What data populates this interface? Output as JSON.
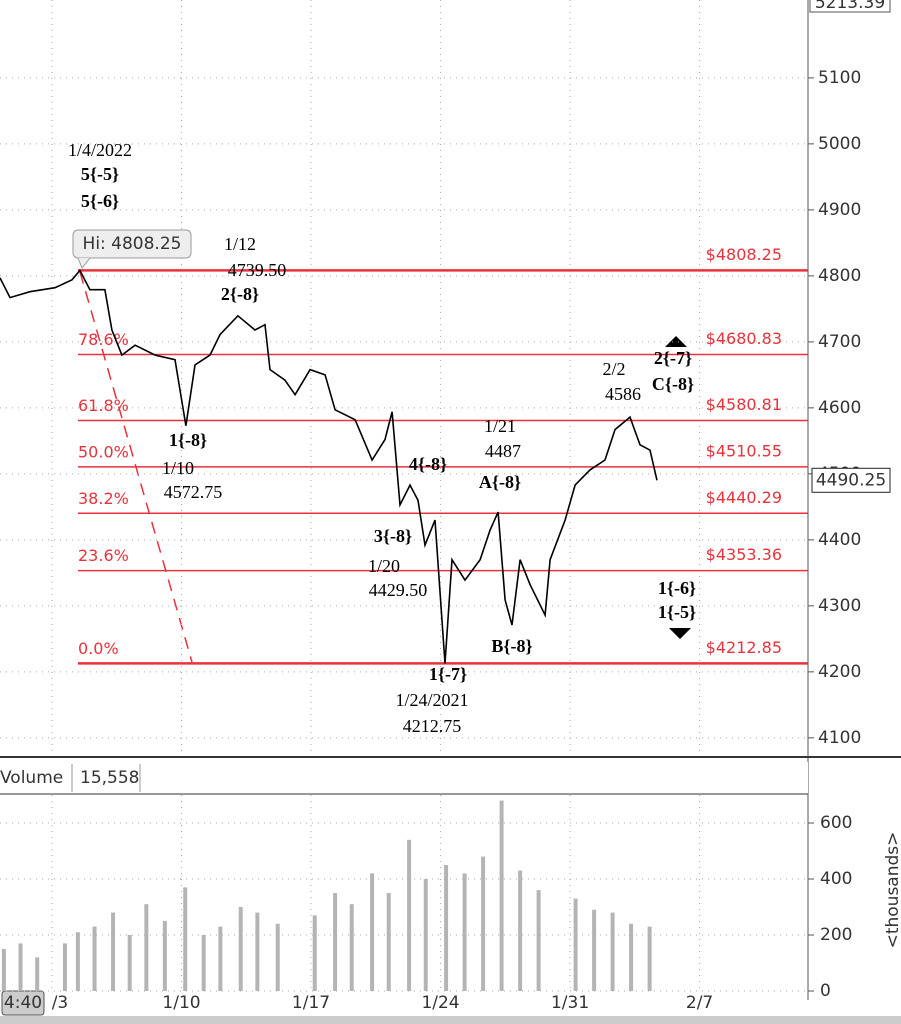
{
  "chart_data": [
    {
      "type": "line",
      "color": "#000000",
      "x": [
        -2.81,
        -2.27,
        -1.19,
        0.16,
        1.08,
        1.51,
        2.05,
        2.86,
        3.24,
        3.78,
        4.49,
        5.57,
        6.65,
        7.24,
        7.73,
        8.54,
        9.08,
        10.05,
        10.97,
        11.51,
        11.78,
        12.59,
        13.14,
        13.95,
        14.76,
        15.3,
        16.38,
        17.3,
        18,
        18.38,
        18.81,
        19.35,
        19.78,
        20.16,
        20.7,
        21.24,
        21.62,
        22.32,
        23.14,
        23.68,
        24.11,
        24.49,
        24.86,
        25.3,
        25.84,
        26.65,
        26.92,
        27.73,
        28.27,
        29.08,
        29.89,
        30.43,
        31.24,
        31.78,
        32.32,
        32.7
      ],
      "values": [
        4797,
        4767,
        4776,
        4782,
        4794,
        4808.25,
        4779,
        4779,
        4718,
        4680,
        4695,
        4680,
        4673,
        4572.75,
        4665,
        4680,
        4711,
        4739.5,
        4718,
        4726,
        4658,
        4642,
        4620,
        4658,
        4650,
        4597,
        4582,
        4521,
        4552,
        4594,
        4453,
        4483,
        4460,
        4392,
        4430,
        4212.75,
        4370,
        4339,
        4370,
        4415,
        4442,
        4309,
        4271,
        4370,
        4332,
        4286,
        4370,
        4430,
        4483,
        4506,
        4521,
        4567,
        4586,
        4544,
        4536,
        4490.25
      ],
      "xlim": [
        -2.81,
        40.86
      ],
      "xticks": [
        {
          "value": 0,
          "label": "/3"
        },
        {
          "value": 7,
          "label": "1/10"
        },
        {
          "value": 14,
          "label": "1/17"
        },
        {
          "value": 21,
          "label": "1/24"
        },
        {
          "value": 28,
          "label": "1/31"
        },
        {
          "value": 35,
          "label": "2/7"
        }
      ],
      "time_label": "4:40",
      "ylim": [
        4074,
        5218
      ],
      "yticks": [
        4100,
        4200,
        4300,
        4400,
        4500,
        4600,
        4700,
        4800,
        4900,
        5000,
        5100
      ],
      "top_price": "5213.39",
      "last_price": {
        "value": 4490.25,
        "label": "4490.25"
      },
      "level_color": "#e8323c",
      "levels": [
        {
          "value": 4808.25,
          "label": "$4808.25"
        },
        {
          "value": 4680.83,
          "label": "$4680.83",
          "pct": "78.6%"
        },
        {
          "value": 4580.81,
          "label": "$4580.81",
          "pct": "61.8%"
        },
        {
          "value": 4510.55,
          "label": "$4510.55",
          "pct": "50.0%"
        },
        {
          "value": 4440.29,
          "label": "$4440.29",
          "pct": "38.2%"
        },
        {
          "value": 4353.36,
          "label": "$4353.36",
          "pct": "23.6%"
        },
        {
          "value": 4212.85,
          "label": "$4212.85",
          "pct": "0.0%"
        }
      ],
      "annotations": [
        "1/4/2022",
        "5{-5}",
        "5{-6}",
        "Hi: 4808.25",
        "1/12",
        "4739.50",
        "2{-8}",
        "1{-8}",
        "1/10",
        "4572.75",
        "4{-8}",
        "1/21",
        "4487",
        "A{-8}",
        "3{-8}",
        "1/20",
        "4429.50",
        "B{-8}",
        "1{-7}",
        "1/24/2021",
        "4212.75",
        "2/2",
        "4586",
        "2{-7}",
        "C{-8}",
        "1{-6}",
        "1{-5}"
      ],
      "grid": true
    },
    {
      "type": "bar",
      "title": "Volume",
      "last_value": "15,558",
      "color": "#b4b4b4",
      "x": [
        -2.6,
        -1.7,
        -0.8,
        0.7,
        1.4,
        2.3,
        3.3,
        4.2,
        5.1,
        6.1,
        7.2,
        8.2,
        9.1,
        10.2,
        11.1,
        12.2,
        14.2,
        15.3,
        16.2,
        17.3,
        18.2,
        19.3,
        20.2,
        21.3,
        22.3,
        23.3,
        24.3,
        25.3,
        26.3,
        28.3,
        29.3,
        30.3,
        31.3,
        32.3
      ],
      "values": [
        150,
        170,
        120,
        170,
        210,
        230,
        280,
        200,
        310,
        250,
        370,
        200,
        230,
        300,
        280,
        240,
        270,
        350,
        310,
        420,
        350,
        540,
        400,
        450,
        420,
        480,
        680,
        430,
        360,
        330,
        290,
        280,
        240,
        230
      ],
      "ylim": [
        0,
        700
      ],
      "yticks": [
        0,
        200,
        400,
        600
      ],
      "ylabel": "<thousands>",
      "grid": true
    }
  ]
}
